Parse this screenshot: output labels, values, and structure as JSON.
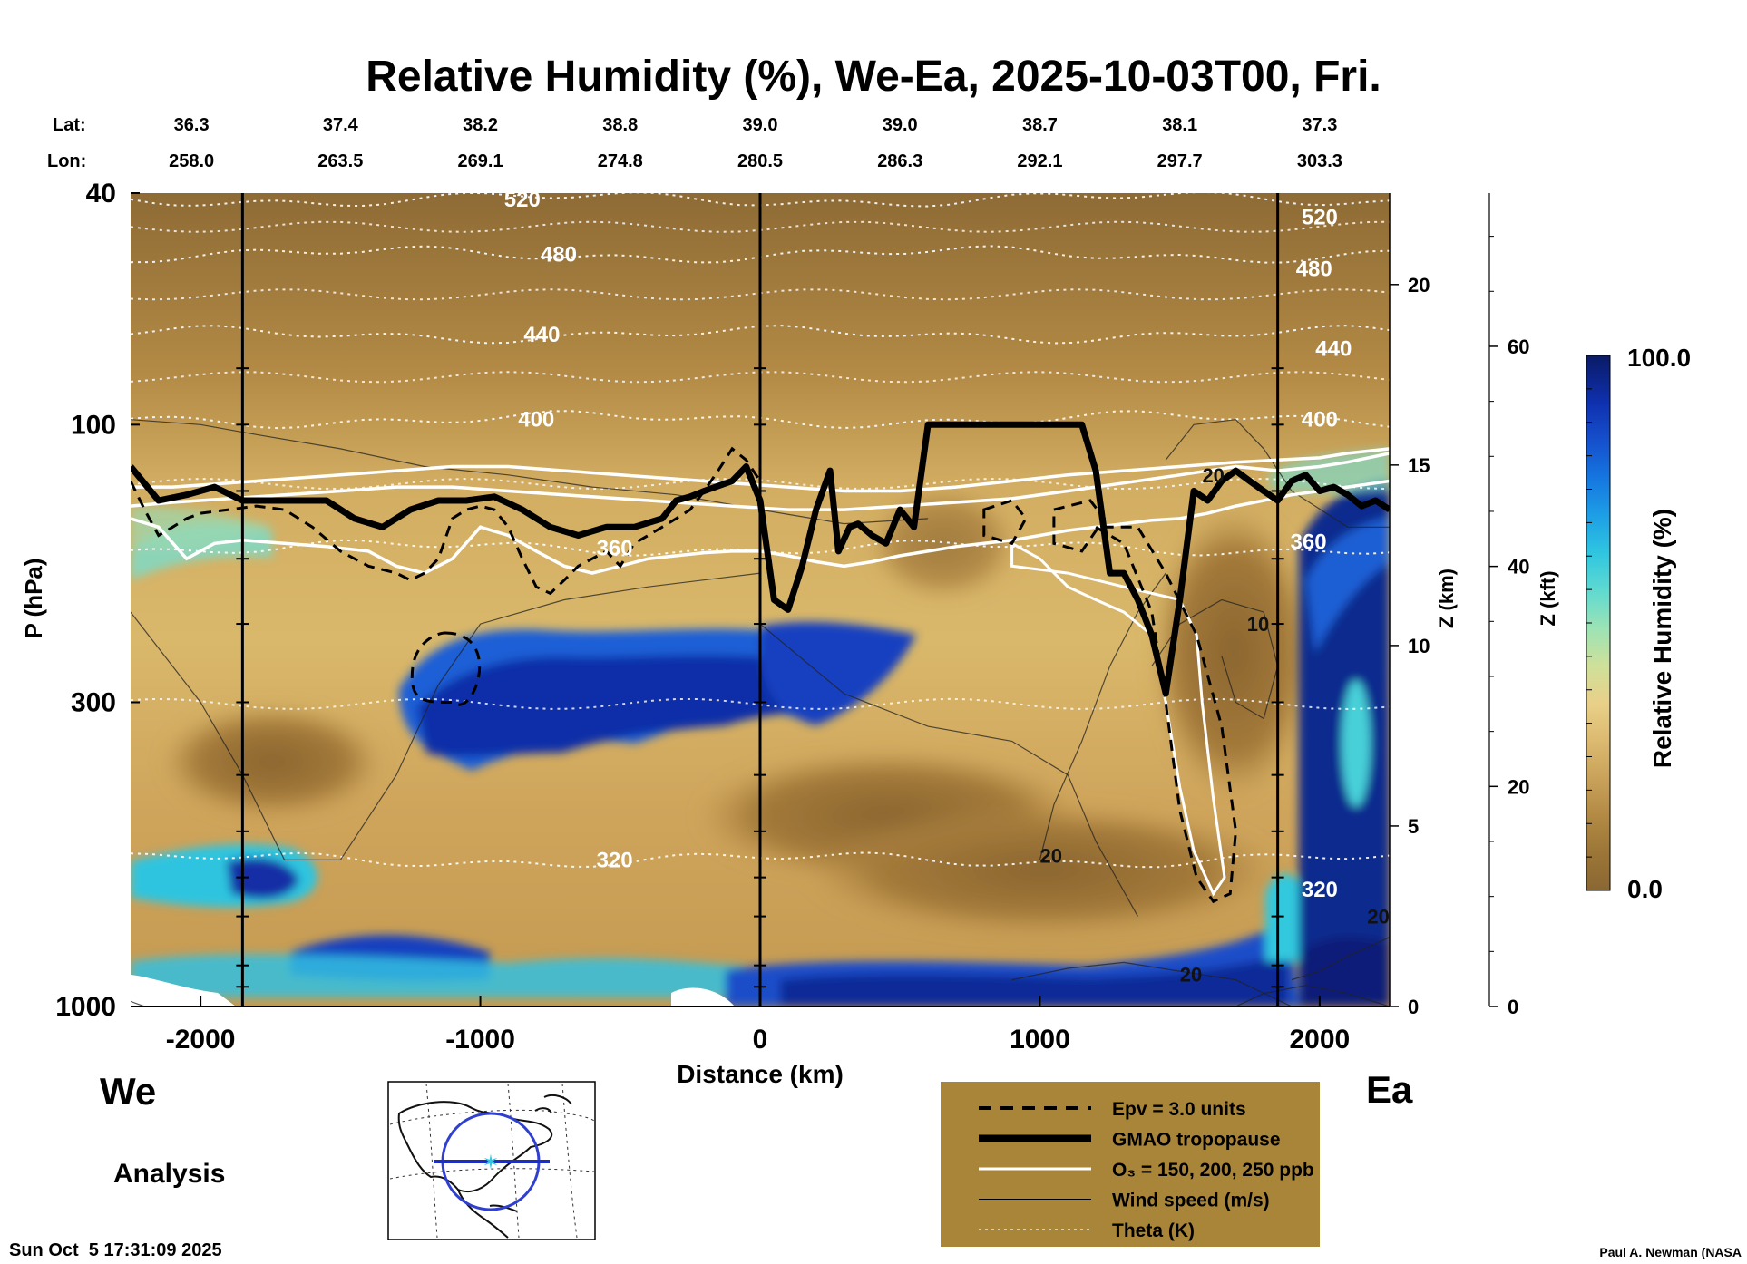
{
  "title": "Relative Humidity (%), We-Ea, 2025-10-03T00, Fri.",
  "lat_label": "Lat:",
  "lon_label": "Lon:",
  "lat_values": [
    "36.3",
    "37.4",
    "38.2",
    "38.8",
    "39.0",
    "39.0",
    "38.7",
    "38.1",
    "37.3"
  ],
  "lon_values": [
    "258.0",
    "263.5",
    "269.1",
    "274.8",
    "280.5",
    "286.3",
    "292.1",
    "297.7",
    "303.3"
  ],
  "left_end_label": "We",
  "right_end_label": "Ea",
  "analysis_label": "Analysis",
  "timestamp": "Sun Oct  5 17:31:09 2025",
  "credit": "Paul A. Newman (NASA",
  "colorbar": {
    "label": "Relative Humidity (%)",
    "max_label": "100.0",
    "min_label": "0.0",
    "colors": [
      "#8a6733",
      "#9c7637",
      "#b28a45",
      "#c9a25a",
      "#dcba70",
      "#e9d089",
      "#cfe09a",
      "#9ce3b5",
      "#5fdad0",
      "#2fc6e0",
      "#1d9fe6",
      "#1577e0",
      "#1550cd",
      "#0f31b0",
      "#0b2488",
      "#0a1a66"
    ]
  },
  "legend": {
    "colors": {
      "background": "#a98539",
      "theta": "#f2ead0"
    },
    "items": [
      {
        "label": "Epv = 3.0 units",
        "style": "dashed-black"
      },
      {
        "label": "GMAO tropopause",
        "style": "thick-black"
      },
      {
        "label": "O₃ = 150, 200, 250 ppb",
        "style": "white"
      },
      {
        "label": "Wind speed (m/s)",
        "style": "thin-black"
      },
      {
        "label": "Theta (K)",
        "style": "dotted-white"
      }
    ]
  },
  "chart_data": {
    "type": "heatmap",
    "title": "Relative Humidity (%), We-Ea, 2025-10-03T00, Fri.",
    "xlabel": "Distance (km)",
    "ylabel": "P (hPa)",
    "y2label": "Z (km)",
    "y3label": "Z (kft)",
    "xlim": [
      -2250,
      2250
    ],
    "ylim": [
      1000,
      40
    ],
    "y_scale": "log",
    "x_ticks": [
      -2000,
      -1000,
      0,
      1000,
      2000
    ],
    "p_ticks": [
      1000,
      300,
      100,
      40
    ],
    "z_km_ticks": [
      0,
      5,
      10,
      15,
      20
    ],
    "z_kft_ticks": [
      0,
      20,
      40,
      60
    ],
    "value_range": [
      0.0,
      100.0
    ],
    "vertical_markers_km": [
      -1850,
      0,
      1850
    ],
    "theta_labels": [
      {
        "text": "520",
        "x": -850,
        "p": 41
      },
      {
        "text": "480",
        "x": -720,
        "p": 51
      },
      {
        "text": "440",
        "x": -780,
        "p": 70
      },
      {
        "text": "400",
        "x": -800,
        "p": 98
      },
      {
        "text": "360",
        "x": -520,
        "p": 163
      },
      {
        "text": "320",
        "x": -520,
        "p": 560
      },
      {
        "text": "520",
        "x": 2000,
        "p": 44
      },
      {
        "text": "480",
        "x": 1980,
        "p": 54
      },
      {
        "text": "440",
        "x": 2050,
        "p": 74
      },
      {
        "text": "400",
        "x": 2000,
        "p": 98
      },
      {
        "text": "360",
        "x": 1960,
        "p": 159
      },
      {
        "text": "320",
        "x": 2000,
        "p": 630
      }
    ],
    "wind_labels": [
      {
        "text": "20",
        "x": 1620,
        "p": 122
      },
      {
        "text": "10",
        "x": 1780,
        "p": 220
      },
      {
        "text": "20",
        "x": 1040,
        "p": 550
      },
      {
        "text": "20",
        "x": 1540,
        "p": 880
      },
      {
        "text": "20",
        "x": 2210,
        "p": 700
      }
    ],
    "tropopause": {
      "x": [
        -2250,
        -2150,
        -2050,
        -1950,
        -1850,
        -1750,
        -1650,
        -1550,
        -1450,
        -1350,
        -1250,
        -1150,
        -1050,
        -950,
        -850,
        -750,
        -650,
        -550,
        -450,
        -350,
        -300,
        -250,
        -200,
        -100,
        -50,
        0,
        50,
        100,
        150,
        200,
        250,
        280,
        320,
        350,
        400,
        450,
        500,
        550,
        600,
        700,
        800,
        900,
        1000,
        1100,
        1150,
        1200,
        1250,
        1300,
        1350,
        1400,
        1450,
        1500,
        1550,
        1600,
        1650,
        1700,
        1750,
        1800,
        1850,
        1900,
        1950,
        2000,
        2050,
        2100,
        2150,
        2200,
        2250
      ],
      "p": [
        118,
        135,
        132,
        128,
        135,
        135,
        135,
        135,
        145,
        150,
        140,
        135,
        135,
        133,
        140,
        150,
        155,
        150,
        150,
        145,
        135,
        133,
        130,
        125,
        118,
        135,
        200,
        208,
        175,
        140,
        120,
        165,
        150,
        148,
        155,
        160,
        140,
        150,
        100,
        100,
        100,
        100,
        100,
        100,
        100,
        120,
        180,
        180,
        200,
        230,
        290,
        200,
        130,
        135,
        125,
        120,
        125,
        130,
        135,
        125,
        122,
        130,
        128,
        132,
        138,
        135,
        140
      ]
    },
    "epv_contour": {
      "x": [
        -2250,
        -2200,
        -2150,
        -2100,
        -2050,
        -2000,
        -1900,
        -1800,
        -1700,
        -1600,
        -1500,
        -1400,
        -1300,
        -1250,
        -1200,
        -1150,
        -1100,
        -1050,
        -1000,
        -950,
        -900,
        -850,
        -800,
        -750,
        -700,
        -650,
        -600,
        -550,
        -500,
        -450,
        -400,
        -350,
        -300,
        -250,
        -200,
        -150,
        -100,
        -50,
        0
      ],
      "p": [
        125,
        140,
        155,
        150,
        145,
        142,
        140,
        138,
        140,
        150,
        165,
        175,
        180,
        185,
        180,
        170,
        145,
        140,
        138,
        140,
        150,
        170,
        190,
        195,
        185,
        175,
        170,
        165,
        175,
        160,
        155,
        150,
        145,
        140,
        130,
        120,
        110,
        115,
        125
      ]
    },
    "epv_closed": {
      "x_center": -1125,
      "p_top": 228,
      "p_bottom": 300,
      "half_width_km": 130
    },
    "ozone_contours": [
      {
        "x": [
          -2250,
          -2100,
          -1900,
          -1700,
          -1500,
          -1300,
          -1100,
          -900,
          -700,
          -500,
          -300,
          -100,
          100,
          300,
          500,
          700,
          900,
          1100,
          1300,
          1500,
          1700,
          1850,
          2000,
          2100,
          2250
        ],
        "p": [
          128,
          128,
          126,
          124,
          122,
          120,
          118,
          118,
          120,
          122,
          124,
          126,
          128,
          130,
          130,
          128,
          125,
          122,
          120,
          118,
          116,
          115,
          114,
          112,
          110
        ]
      },
      {
        "x": [
          -2250,
          -2100,
          -1900,
          -1700,
          -1500,
          -1300,
          -1100,
          -900,
          -700,
          -500,
          -300,
          -100,
          100,
          300,
          500,
          700,
          900,
          1100,
          1300,
          1500,
          1700,
          1850,
          2000,
          2100,
          2250
        ],
        "p": [
          138,
          136,
          134,
          132,
          130,
          128,
          128,
          130,
          132,
          134,
          136,
          138,
          140,
          140,
          138,
          136,
          134,
          130,
          126,
          122,
          118,
          120,
          118,
          116,
          112
        ]
      },
      {
        "x": [
          -2250,
          -2150,
          -2050,
          -1950,
          -1850,
          -1700,
          -1550,
          -1400,
          -1300,
          -1200,
          -1100,
          -1000,
          -900,
          -800,
          -700,
          -600,
          -500,
          -400,
          -300,
          -200,
          -100,
          0,
          100,
          200,
          300,
          400,
          500,
          600,
          700,
          800,
          900,
          1000,
          1100,
          1200,
          1300,
          1400,
          1500,
          1600,
          1700,
          1800,
          1900,
          2000,
          2100,
          2200,
          2250
        ],
        "p": [
          145,
          150,
          170,
          160,
          158,
          160,
          162,
          165,
          175,
          180,
          170,
          150,
          155,
          165,
          175,
          180,
          175,
          170,
          168,
          166,
          165,
          165,
          168,
          172,
          175,
          172,
          168,
          165,
          162,
          160,
          158,
          155,
          152,
          150,
          148,
          146,
          145,
          142,
          138,
          135,
          132,
          130,
          128,
          126,
          125
        ]
      }
    ],
    "theta_levels": [
      {
        "theta": "520",
        "p": 41
      },
      {
        "theta": "480",
        "p": 51
      },
      {
        "theta": "440",
        "p": 70
      },
      {
        "theta": "400",
        "p": 98
      },
      {
        "theta": "360",
        "p": 163
      },
      {
        "theta": "320",
        "p": 560
      }
    ]
  }
}
